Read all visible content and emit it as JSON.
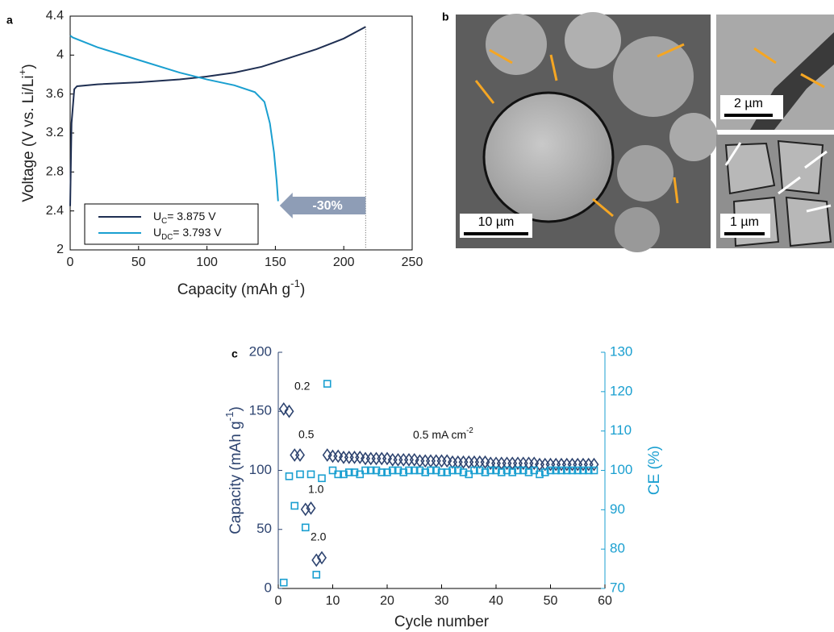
{
  "chart_data": [
    {
      "type": "line",
      "panel": "a",
      "xlabel": {
        "text": "Capacity (mAh g",
        "sup": "-1",
        "end": ")"
      },
      "ylabel": {
        "text": "Voltage (V vs. Li/Li",
        "sup": "+",
        "end": ")"
      },
      "xlim": [
        0,
        250
      ],
      "xticks": [
        0,
        50,
        100,
        150,
        200,
        250
      ],
      "ylim": [
        2,
        4.4
      ],
      "yticks": [
        2,
        2.4,
        2.8,
        3.2,
        3.6,
        4,
        4.4
      ],
      "series": [
        {
          "label": {
            "symbol": "U",
            "sub": "C",
            "value": "= 3.875 V"
          },
          "color": "#1f2f52",
          "x": [
            0,
            1,
            3,
            5,
            20,
            50,
            80,
            100,
            120,
            140,
            160,
            180,
            200,
            216
          ],
          "values": [
            2.45,
            3.3,
            3.65,
            3.68,
            3.7,
            3.72,
            3.75,
            3.78,
            3.82,
            3.88,
            3.97,
            4.06,
            4.17,
            4.29
          ]
        },
        {
          "label": {
            "symbol": "U",
            "sub": "DC",
            "value": "= 3.793 V"
          },
          "color": "#1a9fd0",
          "x": [
            0,
            2,
            20,
            50,
            80,
            100,
            120,
            135,
            142,
            146,
            149,
            151,
            152
          ],
          "values": [
            4.2,
            4.18,
            4.08,
            3.95,
            3.82,
            3.75,
            3.69,
            3.62,
            3.52,
            3.3,
            3.0,
            2.7,
            2.5
          ]
        }
      ],
      "annotation": "-30%"
    },
    {
      "type": "scatter",
      "panel": "c",
      "xlabel": "Cycle number",
      "ylabel": {
        "text": "Capacity (mAh g",
        "sup": "-1",
        "end": ")"
      },
      "y2label": "CE (%)",
      "xlim": [
        0,
        60
      ],
      "xticks": [
        0,
        10,
        20,
        30,
        40,
        50,
        60
      ],
      "ylim": [
        0,
        200
      ],
      "yticks": [
        0,
        50,
        100,
        150,
        200
      ],
      "y2lim": [
        70,
        130
      ],
      "y2ticks": [
        70,
        80,
        90,
        100,
        110,
        120,
        130
      ],
      "x": [
        1,
        2,
        3,
        4,
        5,
        6,
        7,
        8,
        9,
        10,
        11,
        12,
        13,
        14,
        15,
        16,
        17,
        18,
        19,
        20,
        21,
        22,
        23,
        24,
        25,
        26,
        27,
        28,
        29,
        30,
        31,
        32,
        33,
        34,
        35,
        36,
        37,
        38,
        39,
        40,
        41,
        42,
        43,
        44,
        45,
        46,
        47,
        48,
        49,
        50,
        51,
        52,
        53,
        54,
        55,
        56,
        57,
        58
      ],
      "series": [
        {
          "color": "#2e4470",
          "marker": "diamond",
          "values": [
            152,
            150,
            113,
            113,
            67,
            68,
            24,
            26,
            113,
            112,
            112,
            111,
            111,
            111,
            111,
            110,
            110,
            110,
            110,
            110,
            109,
            109,
            109,
            109,
            109,
            108,
            108,
            108,
            108,
            108,
            108,
            107,
            107,
            107,
            107,
            107,
            107,
            107,
            106,
            106,
            106,
            106,
            106,
            106,
            106,
            106,
            106,
            105,
            105,
            105,
            105,
            105,
            105,
            105,
            105,
            105,
            105,
            105
          ]
        },
        {
          "color": "#1a9fd0",
          "marker": "square",
          "axis": "y2",
          "values": [
            71.5,
            98.5,
            91,
            99,
            85.5,
            99,
            73.5,
            98,
            122,
            100,
            99,
            99,
            99.5,
            99.5,
            99,
            100,
            100,
            100,
            99.5,
            99.5,
            100,
            100,
            99.5,
            100,
            100,
            100,
            99.5,
            100,
            100,
            99.5,
            99.5,
            100,
            100,
            99.5,
            99,
            100,
            100,
            99.5,
            100,
            100,
            99.5,
            100,
            99.5,
            100,
            100,
            99.5,
            100,
            99,
            99.5,
            100,
            100,
            100,
            100,
            100,
            100,
            100,
            100,
            100
          ]
        }
      ],
      "annotations": [
        "0.2",
        "0.5",
        "1.0",
        "2.0"
      ],
      "rate_label": {
        "text": "0.5 mA cm",
        "sup": "-2"
      }
    }
  ],
  "panel_b": {
    "panel": "b",
    "scale_bars": [
      "10 µm",
      "2 µm",
      "1 µm"
    ]
  }
}
